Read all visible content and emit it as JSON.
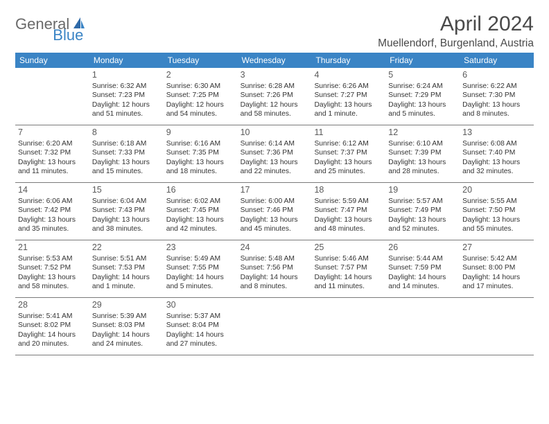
{
  "logo": {
    "general": "General",
    "blue": "Blue"
  },
  "title": "April 2024",
  "location": "Muellendorf, Burgenland, Austria",
  "colors": {
    "header_bg": "#3a84c5",
    "header_text": "#ffffff",
    "body_text": "#333333",
    "page_bg": "#ffffff"
  },
  "day_names": [
    "Sunday",
    "Monday",
    "Tuesday",
    "Wednesday",
    "Thursday",
    "Friday",
    "Saturday"
  ],
  "weeks": [
    [
      {
        "num": "",
        "sunrise": "",
        "sunset": "",
        "daylight1": "",
        "daylight2": ""
      },
      {
        "num": "1",
        "sunrise": "Sunrise: 6:32 AM",
        "sunset": "Sunset: 7:23 PM",
        "daylight1": "Daylight: 12 hours",
        "daylight2": "and 51 minutes."
      },
      {
        "num": "2",
        "sunrise": "Sunrise: 6:30 AM",
        "sunset": "Sunset: 7:25 PM",
        "daylight1": "Daylight: 12 hours",
        "daylight2": "and 54 minutes."
      },
      {
        "num": "3",
        "sunrise": "Sunrise: 6:28 AM",
        "sunset": "Sunset: 7:26 PM",
        "daylight1": "Daylight: 12 hours",
        "daylight2": "and 58 minutes."
      },
      {
        "num": "4",
        "sunrise": "Sunrise: 6:26 AM",
        "sunset": "Sunset: 7:27 PM",
        "daylight1": "Daylight: 13 hours",
        "daylight2": "and 1 minute."
      },
      {
        "num": "5",
        "sunrise": "Sunrise: 6:24 AM",
        "sunset": "Sunset: 7:29 PM",
        "daylight1": "Daylight: 13 hours",
        "daylight2": "and 5 minutes."
      },
      {
        "num": "6",
        "sunrise": "Sunrise: 6:22 AM",
        "sunset": "Sunset: 7:30 PM",
        "daylight1": "Daylight: 13 hours",
        "daylight2": "and 8 minutes."
      }
    ],
    [
      {
        "num": "7",
        "sunrise": "Sunrise: 6:20 AM",
        "sunset": "Sunset: 7:32 PM",
        "daylight1": "Daylight: 13 hours",
        "daylight2": "and 11 minutes."
      },
      {
        "num": "8",
        "sunrise": "Sunrise: 6:18 AM",
        "sunset": "Sunset: 7:33 PM",
        "daylight1": "Daylight: 13 hours",
        "daylight2": "and 15 minutes."
      },
      {
        "num": "9",
        "sunrise": "Sunrise: 6:16 AM",
        "sunset": "Sunset: 7:35 PM",
        "daylight1": "Daylight: 13 hours",
        "daylight2": "and 18 minutes."
      },
      {
        "num": "10",
        "sunrise": "Sunrise: 6:14 AM",
        "sunset": "Sunset: 7:36 PM",
        "daylight1": "Daylight: 13 hours",
        "daylight2": "and 22 minutes."
      },
      {
        "num": "11",
        "sunrise": "Sunrise: 6:12 AM",
        "sunset": "Sunset: 7:37 PM",
        "daylight1": "Daylight: 13 hours",
        "daylight2": "and 25 minutes."
      },
      {
        "num": "12",
        "sunrise": "Sunrise: 6:10 AM",
        "sunset": "Sunset: 7:39 PM",
        "daylight1": "Daylight: 13 hours",
        "daylight2": "and 28 minutes."
      },
      {
        "num": "13",
        "sunrise": "Sunrise: 6:08 AM",
        "sunset": "Sunset: 7:40 PM",
        "daylight1": "Daylight: 13 hours",
        "daylight2": "and 32 minutes."
      }
    ],
    [
      {
        "num": "14",
        "sunrise": "Sunrise: 6:06 AM",
        "sunset": "Sunset: 7:42 PM",
        "daylight1": "Daylight: 13 hours",
        "daylight2": "and 35 minutes."
      },
      {
        "num": "15",
        "sunrise": "Sunrise: 6:04 AM",
        "sunset": "Sunset: 7:43 PM",
        "daylight1": "Daylight: 13 hours",
        "daylight2": "and 38 minutes."
      },
      {
        "num": "16",
        "sunrise": "Sunrise: 6:02 AM",
        "sunset": "Sunset: 7:45 PM",
        "daylight1": "Daylight: 13 hours",
        "daylight2": "and 42 minutes."
      },
      {
        "num": "17",
        "sunrise": "Sunrise: 6:00 AM",
        "sunset": "Sunset: 7:46 PM",
        "daylight1": "Daylight: 13 hours",
        "daylight2": "and 45 minutes."
      },
      {
        "num": "18",
        "sunrise": "Sunrise: 5:59 AM",
        "sunset": "Sunset: 7:47 PM",
        "daylight1": "Daylight: 13 hours",
        "daylight2": "and 48 minutes."
      },
      {
        "num": "19",
        "sunrise": "Sunrise: 5:57 AM",
        "sunset": "Sunset: 7:49 PM",
        "daylight1": "Daylight: 13 hours",
        "daylight2": "and 52 minutes."
      },
      {
        "num": "20",
        "sunrise": "Sunrise: 5:55 AM",
        "sunset": "Sunset: 7:50 PM",
        "daylight1": "Daylight: 13 hours",
        "daylight2": "and 55 minutes."
      }
    ],
    [
      {
        "num": "21",
        "sunrise": "Sunrise: 5:53 AM",
        "sunset": "Sunset: 7:52 PM",
        "daylight1": "Daylight: 13 hours",
        "daylight2": "and 58 minutes."
      },
      {
        "num": "22",
        "sunrise": "Sunrise: 5:51 AM",
        "sunset": "Sunset: 7:53 PM",
        "daylight1": "Daylight: 14 hours",
        "daylight2": "and 1 minute."
      },
      {
        "num": "23",
        "sunrise": "Sunrise: 5:49 AM",
        "sunset": "Sunset: 7:55 PM",
        "daylight1": "Daylight: 14 hours",
        "daylight2": "and 5 minutes."
      },
      {
        "num": "24",
        "sunrise": "Sunrise: 5:48 AM",
        "sunset": "Sunset: 7:56 PM",
        "daylight1": "Daylight: 14 hours",
        "daylight2": "and 8 minutes."
      },
      {
        "num": "25",
        "sunrise": "Sunrise: 5:46 AM",
        "sunset": "Sunset: 7:57 PM",
        "daylight1": "Daylight: 14 hours",
        "daylight2": "and 11 minutes."
      },
      {
        "num": "26",
        "sunrise": "Sunrise: 5:44 AM",
        "sunset": "Sunset: 7:59 PM",
        "daylight1": "Daylight: 14 hours",
        "daylight2": "and 14 minutes."
      },
      {
        "num": "27",
        "sunrise": "Sunrise: 5:42 AM",
        "sunset": "Sunset: 8:00 PM",
        "daylight1": "Daylight: 14 hours",
        "daylight2": "and 17 minutes."
      }
    ],
    [
      {
        "num": "28",
        "sunrise": "Sunrise: 5:41 AM",
        "sunset": "Sunset: 8:02 PM",
        "daylight1": "Daylight: 14 hours",
        "daylight2": "and 20 minutes."
      },
      {
        "num": "29",
        "sunrise": "Sunrise: 5:39 AM",
        "sunset": "Sunset: 8:03 PM",
        "daylight1": "Daylight: 14 hours",
        "daylight2": "and 24 minutes."
      },
      {
        "num": "30",
        "sunrise": "Sunrise: 5:37 AM",
        "sunset": "Sunset: 8:04 PM",
        "daylight1": "Daylight: 14 hours",
        "daylight2": "and 27 minutes."
      },
      {
        "num": "",
        "sunrise": "",
        "sunset": "",
        "daylight1": "",
        "daylight2": ""
      },
      {
        "num": "",
        "sunrise": "",
        "sunset": "",
        "daylight1": "",
        "daylight2": ""
      },
      {
        "num": "",
        "sunrise": "",
        "sunset": "",
        "daylight1": "",
        "daylight2": ""
      },
      {
        "num": "",
        "sunrise": "",
        "sunset": "",
        "daylight1": "",
        "daylight2": ""
      }
    ]
  ]
}
